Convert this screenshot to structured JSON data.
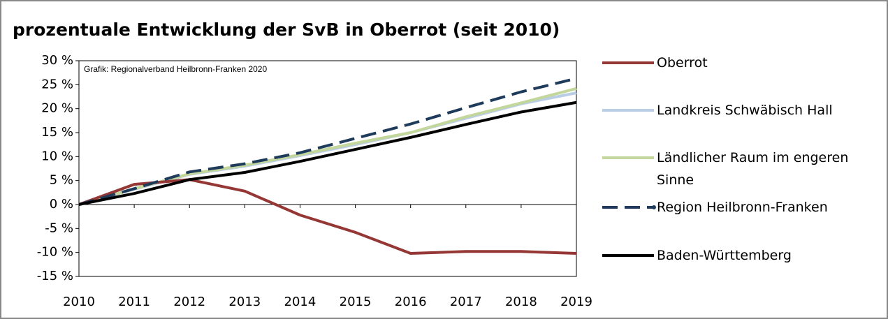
{
  "chart_data": {
    "type": "line",
    "title": "prozentuale Entwicklung der SvB in Oberrot (seit 2010)",
    "annotation": "Grafik: Regionalverband Heilbronn-Franken 2020",
    "categories": [
      "2010",
      "2011",
      "2012",
      "2013",
      "2014",
      "2015",
      "2016",
      "2017",
      "2018",
      "2019"
    ],
    "series": [
      {
        "name": "Oberrot",
        "color": "#953735",
        "values": [
          0,
          4.2,
          5.2,
          2.8,
          -2.2,
          -5.8,
          -10.2,
          -9.8,
          -9.8,
          -10.2
        ]
      },
      {
        "name": "Landkreis Schwäbisch Hall",
        "color": "#b9cde5",
        "values": [
          0,
          3.2,
          6.3,
          8.0,
          10.2,
          12.5,
          15.0,
          18.0,
          21.0,
          23.3
        ]
      },
      {
        "name": "Ländlicher Raum im engeren Sinne",
        "color": "#c3d69b",
        "values": [
          0,
          3.3,
          6.4,
          8.2,
          10.4,
          12.8,
          15.0,
          18.3,
          21.2,
          24.2
        ]
      },
      {
        "name": "Region Heilbronn-Franken",
        "color": "#1f3b5c",
        "dashed": true,
        "values": [
          0,
          3.3,
          6.8,
          8.5,
          10.8,
          13.8,
          16.8,
          20.2,
          23.5,
          26.3
        ]
      },
      {
        "name": "Baden-Württemberg",
        "color": "#000000",
        "values": [
          0,
          2.3,
          5.2,
          6.7,
          9.0,
          11.5,
          14.0,
          16.7,
          19.3,
          21.3
        ]
      }
    ],
    "ylim": [
      -15,
      30
    ],
    "yticks": [
      {
        "value": -15,
        "label": "-15 %"
      },
      {
        "value": -10,
        "label": "-10 %"
      },
      {
        "value": -5,
        "label": "-5 %"
      },
      {
        "value": 0,
        "label": "0 %"
      },
      {
        "value": 5,
        "label": "5 %"
      },
      {
        "value": 10,
        "label": "10 %"
      },
      {
        "value": 15,
        "label": "15 %"
      },
      {
        "value": 20,
        "label": "20 %"
      },
      {
        "value": 25,
        "label": "25 %"
      },
      {
        "value": 30,
        "label": "30 %"
      }
    ],
    "grid": false,
    "legend": "right"
  }
}
